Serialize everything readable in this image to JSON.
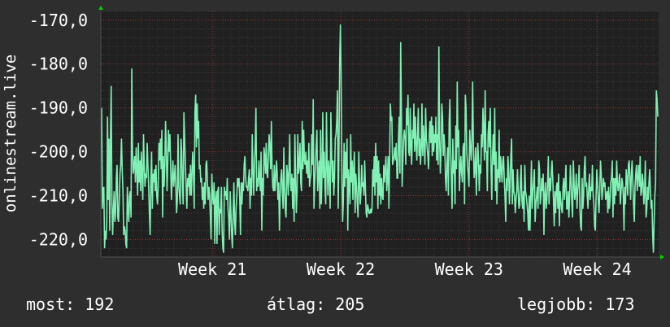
{
  "chart_data": {
    "type": "line",
    "ylabel": "onlinestream.live",
    "ylim": [
      -224,
      -168
    ],
    "ytick_values": [
      -170,
      -180,
      -190,
      -200,
      -210,
      -220
    ],
    "ytick_labels": [
      "-170,0",
      "-180,0",
      "-190,0",
      "-200,0",
      "-210,0",
      "-220,0"
    ],
    "xtick_labels": [
      "Week 21",
      "Week 22",
      "Week 23",
      "Week 24"
    ],
    "xtick_positions": [
      0.2,
      0.43,
      0.66,
      0.89
    ],
    "grid": true,
    "series": [
      {
        "color": "#80f0b4",
        "values": [
          -190,
          -213,
          -209,
          -208,
          -222,
          -218,
          -220,
          -216,
          -192,
          -211,
          -197,
          -218,
          -198,
          -185,
          -212,
          -219,
          -213,
          -209,
          -216,
          -214,
          -206,
          -203,
          -215,
          -216,
          -211,
          -205,
          -203,
          -197,
          -204,
          -209,
          -219,
          -217,
          -218,
          -221,
          -222,
          -208,
          -213,
          -216,
          -210,
          -209,
          -215,
          -181,
          -200,
          -205,
          -203,
          -201,
          -207,
          -199,
          -204,
          -210,
          -198,
          -207,
          -202,
          -209,
          -200,
          -205,
          -211,
          -196,
          -203,
          -208,
          -205,
          -206,
          -198,
          -203,
          -208,
          -214,
          -219,
          -207,
          -200,
          -213,
          -205,
          -207,
          -204,
          -209,
          -203,
          -210,
          -212,
          -208,
          -198,
          -202,
          -197,
          -204,
          -195,
          -215,
          -201,
          -208,
          -203,
          -193,
          -199,
          -209,
          -203,
          -195,
          -200,
          -196,
          -204,
          -211,
          -206,
          -202,
          -208,
          -206,
          -203,
          -208,
          -214,
          -211,
          -196,
          -208,
          -210,
          -212,
          -197,
          -200,
          -208,
          -212,
          -191,
          -197,
          -203,
          -208,
          -213,
          -206,
          -208,
          -205,
          -210,
          -203,
          -210,
          -205,
          -200,
          -205,
          -213,
          -191,
          -187,
          -199,
          -189,
          -197,
          -193,
          -204,
          -203,
          -207,
          -206,
          -211,
          -208,
          -213,
          -207,
          -212,
          -203,
          -202,
          -207,
          -211,
          -208,
          -210,
          -215,
          -220,
          -205,
          -210,
          -212,
          -207,
          -221,
          -211,
          -209,
          -221,
          -209,
          -208,
          -219,
          -213,
          -214,
          -208,
          -218,
          -222,
          -223,
          -208,
          -210,
          -209,
          -211,
          -206,
          -213,
          -215,
          -220,
          -209,
          -214,
          -219,
          -222,
          -214,
          -207,
          -216,
          -219,
          -213,
          -210,
          -206,
          -208,
          -206,
          -211,
          -219,
          -207,
          -212,
          -207,
          -209,
          -203,
          -201,
          -206,
          -208,
          -208,
          -209,
          -206,
          -204,
          -213,
          -206,
          -210,
          -196,
          -204,
          -210,
          -203,
          -199,
          -190,
          -209,
          -206,
          -208,
          -202,
          -206,
          -209,
          -200,
          -218,
          -206,
          -210,
          -199,
          -201,
          -205,
          -198,
          -205,
          -206,
          -201,
          -196,
          -199,
          -204,
          -193,
          -204,
          -208,
          -209,
          -203,
          -209,
          -206,
          -202,
          -205,
          -211,
          -207,
          -218,
          -210,
          -206,
          -204,
          -209,
          -213,
          -199,
          -208,
          -213,
          -215,
          -203,
          -205,
          -210,
          -204,
          -196,
          -207,
          -209,
          -205,
          -213,
          -206,
          -216,
          -196,
          -206,
          -214,
          -209,
          -196,
          -205,
          -203,
          -198,
          -207,
          -209,
          -193,
          -204,
          -195,
          -202,
          -203,
          -200,
          -205,
          -202,
          -206,
          -198,
          -208,
          -206,
          -205,
          -196,
          -203,
          -188,
          -213,
          -207,
          -203,
          -199,
          -195,
          -209,
          -205,
          -202,
          -213,
          -195,
          -212,
          -205,
          -191,
          -206,
          -200,
          -208,
          -212,
          -191,
          -203,
          -210,
          -202,
          -205,
          -213,
          -191,
          -200,
          -207,
          -202,
          -210,
          -206,
          -197,
          -196,
          -193,
          -186,
          -213,
          -200,
          -179,
          -171,
          -183,
          -205,
          -216,
          -211,
          -198,
          -208,
          -200,
          -206,
          -197,
          -218,
          -204,
          -207,
          -212,
          -196,
          -207,
          -202,
          -211,
          -204,
          -200,
          -214,
          -205,
          -208,
          -212,
          -215,
          -200,
          -207,
          -212,
          -209,
          -203,
          -208,
          -207,
          -210,
          -202,
          -208,
          -214,
          -215,
          -212,
          -213,
          -214,
          -214,
          -213,
          -214,
          -213,
          -204,
          -208,
          -201,
          -210,
          -198,
          -207,
          -201,
          -213,
          -202,
          -210,
          -205,
          -212,
          -206,
          -210,
          -211,
          -203,
          -207,
          -204,
          -201,
          -209,
          -206,
          -201,
          -213,
          -202,
          -189,
          -193,
          -192,
          -203,
          -202,
          -201,
          -199,
          -202,
          -198,
          -206,
          -206,
          -197,
          -192,
          -205,
          -175,
          -190,
          -208,
          -202,
          -197,
          -195,
          -197,
          -203,
          -190,
          -194,
          -187,
          -200,
          -201,
          -190,
          -199,
          -203,
          -195,
          -197,
          -189,
          -200,
          -192,
          -198,
          -202,
          -196,
          -190,
          -201,
          -197,
          -203,
          -199,
          -189,
          -201,
          -194,
          -198,
          -203,
          -190,
          -197,
          -199,
          -201,
          -204,
          -196,
          -193,
          -198,
          -192,
          -201,
          -194,
          -200,
          -196,
          -198,
          -192,
          -202,
          -196,
          -203,
          -176,
          -197,
          -205,
          -200,
          -189,
          -192,
          -201,
          -196,
          -199,
          -206,
          -209,
          -203,
          -199,
          -210,
          -193,
          -188,
          -200,
          -206,
          -213,
          -197,
          -205,
          -202,
          -212,
          -194,
          -204,
          -184,
          -199,
          -195,
          -209,
          -204,
          -201,
          -205,
          -207,
          -199,
          -198,
          -212,
          -187,
          -190,
          -200,
          -203,
          -205,
          -208,
          -195,
          -199,
          -202,
          -197,
          -184,
          -199,
          -206,
          -204,
          -199,
          -210,
          -203,
          -198,
          -202,
          -209,
          -203,
          -205,
          -196,
          -199,
          -190,
          -195,
          -202,
          -186,
          -200,
          -200,
          -209,
          -196,
          -193,
          -199,
          -190,
          -204,
          -211,
          -201,
          -196,
          -203,
          -190,
          -209,
          -200,
          -212,
          -204,
          -206,
          -195,
          -207,
          -201,
          -204,
          -207,
          -202,
          -201,
          -206,
          -210,
          -216,
          -206,
          -209,
          -201,
          -204,
          -212,
          -207,
          -201,
          -197,
          -212,
          -204,
          -209,
          -210,
          -214,
          -211,
          -209,
          -204,
          -209,
          -213,
          -212,
          -207,
          -203,
          -211,
          -213,
          -209,
          -216,
          -203,
          -209,
          -210,
          -212,
          -214,
          -218,
          -210,
          -218,
          -210,
          -202,
          -213,
          -209,
          -207,
          -204,
          -216,
          -212,
          -210,
          -208,
          -213,
          -202,
          -204,
          -212,
          -210,
          -206,
          -209,
          -205,
          -219,
          -210,
          -207,
          -213,
          -211,
          -207,
          -201,
          -212,
          -206,
          -209,
          -205,
          -202,
          -206,
          -211,
          -217,
          -209,
          -214,
          -208,
          -207,
          -213,
          -205,
          -217,
          -209,
          -211,
          -213,
          -214,
          -208,
          -206,
          -211,
          -207,
          -203,
          -213,
          -213,
          -209,
          -215,
          -210,
          -203,
          -207,
          -212,
          -215,
          -202,
          -207,
          -211,
          -209,
          -205,
          -213,
          -209,
          -207,
          -203,
          -213,
          -217,
          -218,
          -206,
          -213,
          -210,
          -204,
          -201,
          -208,
          -207,
          -210,
          -213,
          -208,
          -205,
          -211,
          -208,
          -209,
          -203,
          -210,
          -212,
          -217,
          -218,
          -210,
          -204,
          -207,
          -211,
          -214,
          -209,
          -202,
          -205,
          -211,
          -209,
          -206,
          -208,
          -207,
          -211,
          -210,
          -209,
          -214,
          -208,
          -213,
          -211,
          -207,
          -206,
          -202,
          -215,
          -206,
          -212,
          -206,
          -210,
          -202,
          -207,
          -209,
          -207,
          -205,
          -212,
          -209,
          -206,
          -207,
          -210,
          -218,
          -208,
          -212,
          -204,
          -206,
          -210,
          -203,
          -202,
          -206,
          -211,
          -205,
          -202,
          -207,
          -212,
          -216,
          -208,
          -205,
          -203,
          -209,
          -206,
          -203,
          -208,
          -201,
          -210,
          -209,
          -205,
          -207,
          -212,
          -209,
          -202,
          -215,
          -213,
          -208,
          -211,
          -207,
          -204,
          -209,
          -213,
          -211,
          -219,
          -223,
          -216,
          -210,
          -207,
          -186,
          -188,
          -192
        ]
      }
    ]
  },
  "footer": {
    "most": "most: 192",
    "avg": "átlag: 205",
    "best": "legjobb: 173"
  }
}
